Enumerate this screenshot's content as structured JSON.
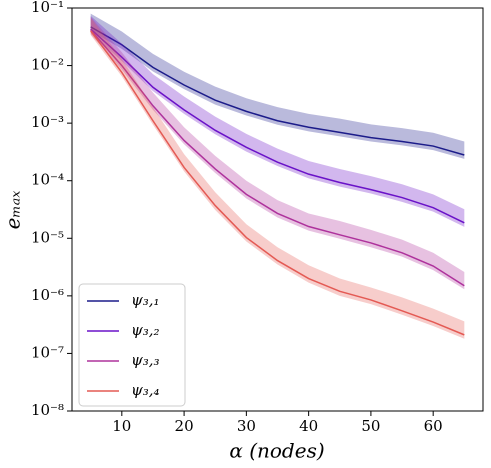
{
  "chart_data": {
    "type": "line",
    "log_y": true,
    "xlabel": "α (nodes)",
    "ylabel": "eₘₐₓ",
    "x": [
      5,
      10,
      15,
      20,
      25,
      30,
      35,
      40,
      45,
      50,
      55,
      60,
      65
    ],
    "xlim": [
      2,
      68
    ],
    "xticks": [
      10,
      20,
      30,
      40,
      50,
      60
    ],
    "ylim": [
      1e-08,
      0.1
    ],
    "yticks": [
      {
        "value": 1e-08,
        "label": "10⁻⁸"
      },
      {
        "value": 1e-07,
        "label": "10⁻⁷"
      },
      {
        "value": 1e-06,
        "label": "10⁻⁶"
      },
      {
        "value": 1e-05,
        "label": "10⁻⁵"
      },
      {
        "value": 0.0001,
        "label": "10⁻⁴"
      },
      {
        "value": 0.001,
        "label": "10⁻³"
      },
      {
        "value": 0.01,
        "label": "10⁻²"
      },
      {
        "value": 0.1,
        "label": "10⁻¹"
      }
    ],
    "legend": "lower left",
    "series": [
      {
        "name": "ψ₃,₁",
        "color": "#1c1c8a",
        "values": [
          0.047,
          0.023,
          0.0093,
          0.0046,
          0.0025,
          0.0016,
          0.0011,
          0.00085,
          0.00069,
          0.00056,
          0.00048,
          0.0004,
          0.00028
        ],
        "upper": [
          0.08,
          0.039,
          0.016,
          0.0078,
          0.0043,
          0.0027,
          0.0019,
          0.00145,
          0.0012,
          0.00095,
          0.00082,
          0.00068,
          0.00048
        ],
        "lower": [
          0.04,
          0.0195,
          0.0079,
          0.0039,
          0.0021,
          0.00136,
          0.00094,
          0.00072,
          0.00059,
          0.00048,
          0.00041,
          0.00034,
          0.00024
        ]
      },
      {
        "name": "ψ₃,₂",
        "color": "#6a12c8",
        "values": [
          0.043,
          0.014,
          0.0042,
          0.0017,
          0.00075,
          0.00038,
          0.00021,
          0.00013,
          9.3e-05,
          7e-05,
          5.1e-05,
          3.4e-05,
          1.86e-05
        ],
        "upper": [
          0.073,
          0.024,
          0.0071,
          0.0029,
          0.0013,
          0.00065,
          0.00036,
          0.00022,
          0.00016,
          0.00012,
          8.7e-05,
          5.8e-05,
          3.2e-05
        ],
        "lower": [
          0.037,
          0.012,
          0.0036,
          0.00145,
          0.00064,
          0.00032,
          0.00018,
          0.00011,
          7.9e-05,
          6e-05,
          4.3e-05,
          2.9e-05,
          1.58e-05
        ]
      },
      {
        "name": "ψ₃,₃",
        "color": "#ae329c",
        "values": [
          0.041,
          0.01,
          0.002,
          0.0005,
          0.00016,
          5.8e-05,
          2.7e-05,
          1.6e-05,
          1.15e-05,
          8.3e-06,
          5.6e-06,
          3.3e-06,
          1.5e-06
        ],
        "upper": [
          0.07,
          0.017,
          0.0034,
          0.00085,
          0.00027,
          0.0001,
          4.6e-05,
          2.7e-05,
          2e-05,
          1.4e-05,
          9.5e-06,
          5.6e-06,
          2.6e-06
        ],
        "lower": [
          0.035,
          0.0085,
          0.0017,
          0.00043,
          0.000136,
          4.9e-05,
          2.3e-05,
          1.36e-05,
          9.8e-06,
          7e-06,
          4.8e-06,
          2.8e-06,
          1.3e-06
        ]
      },
      {
        "name": "ψ₃,₄",
        "color": "#e45a54",
        "values": [
          0.04,
          0.0076,
          0.0011,
          0.00017,
          3.7e-05,
          1.03e-05,
          4.1e-06,
          2e-06,
          1.2e-06,
          8.5e-07,
          5.5e-07,
          3.5e-07,
          2.1e-07
        ],
        "upper": [
          0.068,
          0.013,
          0.0019,
          0.00029,
          6.3e-05,
          1.75e-05,
          7e-06,
          3.4e-06,
          2e-06,
          1.4e-06,
          9.4e-07,
          6e-07,
          3.6e-07
        ],
        "lower": [
          0.034,
          0.0065,
          0.00094,
          0.000145,
          3.1e-05,
          8.8e-06,
          3.5e-06,
          1.7e-06,
          1e-06,
          7.2e-07,
          4.7e-07,
          3e-07,
          1.8e-07
        ]
      }
    ]
  }
}
